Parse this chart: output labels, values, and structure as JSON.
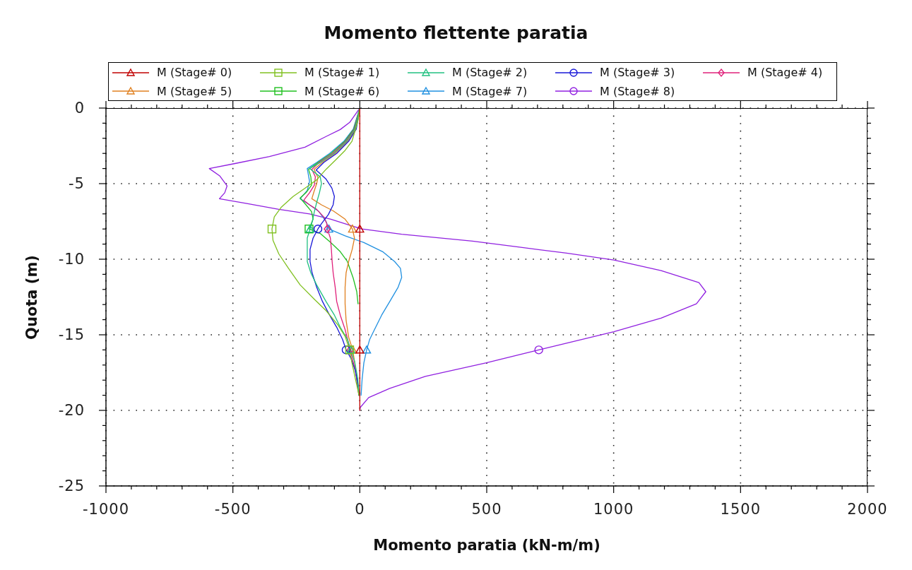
{
  "chart_data": {
    "type": "line",
    "title": "Momento flettente paratia",
    "xlabel": "Momento paratia (kN-m/m)",
    "ylabel": "Quota (m)",
    "xlim": [
      -1000,
      2000
    ],
    "ylim": [
      -25,
      0
    ],
    "xticks": [
      -1000,
      {
        "value": -900,
        "label": null
      },
      {
        "value": -800,
        "label": null
      },
      {
        "value": -700,
        "label": null
      },
      {
        "value": -600,
        "label": null
      },
      -500,
      {
        "value": -400,
        "label": null
      },
      {
        "value": -300,
        "label": null
      },
      {
        "value": -200,
        "label": null
      },
      {
        "value": -100,
        "label": null
      },
      0,
      {
        "value": 100,
        "label": null
      },
      {
        "value": 200,
        "label": null
      },
      {
        "value": 300,
        "label": null
      },
      {
        "value": 400,
        "label": null
      },
      500,
      {
        "value": 600,
        "label": null
      },
      {
        "value": 700,
        "label": null
      },
      {
        "value": 800,
        "label": null
      },
      {
        "value": 900,
        "label": null
      },
      1000,
      {
        "value": 1100,
        "label": null
      },
      {
        "value": 1200,
        "label": null
      },
      {
        "value": 1300,
        "label": null
      },
      {
        "value": 1400,
        "label": null
      },
      1500,
      {
        "value": 1600,
        "label": null
      },
      {
        "value": 1700,
        "label": null
      },
      {
        "value": 1800,
        "label": null
      },
      {
        "value": 1900,
        "label": null
      },
      2000
    ],
    "yticks": [
      -25,
      {
        "value": -24,
        "label": null
      },
      {
        "value": -23,
        "label": null
      },
      {
        "value": -22,
        "label": null
      },
      {
        "value": -21,
        "label": null
      },
      -20,
      {
        "value": -19,
        "label": null
      },
      {
        "value": -18,
        "label": null
      },
      {
        "value": -17,
        "label": null
      },
      {
        "value": -16,
        "label": null
      },
      -15,
      {
        "value": -14,
        "label": null
      },
      {
        "value": -13,
        "label": null
      },
      {
        "value": -12,
        "label": null
      },
      {
        "value": -11,
        "label": null
      },
      -10,
      {
        "value": -9,
        "label": null
      },
      {
        "value": -8,
        "label": null
      },
      {
        "value": -7,
        "label": null
      },
      {
        "value": -6,
        "label": null
      },
      -5,
      {
        "value": -4,
        "label": null
      },
      {
        "value": -3,
        "label": null
      },
      {
        "value": -2,
        "label": null
      },
      {
        "value": -1,
        "label": null
      },
      0
    ],
    "grid": true,
    "legend": "top",
    "series": [
      {
        "name": "M (Stage# 0)",
        "color": "#c00000",
        "x": [
          0,
          0
        ],
        "values": [
          0,
          -20
        ]
      },
      {
        "name": "M (Stage# 1)",
        "color": "#80c020",
        "x": [
          0,
          -7,
          -17,
          -31,
          -58,
          -96,
          -133,
          -170,
          -216,
          -263,
          -309,
          -337,
          -346,
          -342,
          -319,
          -281,
          -235,
          -179,
          -133,
          -86,
          -58,
          -40,
          -31,
          -17,
          -7,
          -3
        ],
        "values": [
          0,
          -0.8,
          -1.4,
          -2.2,
          -2.8,
          -3.45,
          -4.05,
          -4.75,
          -5.3,
          -5.85,
          -6.55,
          -7.2,
          -8,
          -8.75,
          -9.65,
          -10.6,
          -11.7,
          -12.65,
          -13.4,
          -14.35,
          -15.1,
          -16,
          -16.85,
          -17.95,
          -18.7,
          -19
        ]
      },
      {
        "name": "M (Stage# 2)",
        "color": "#20c080",
        "x": [
          0,
          -20,
          -52,
          -102,
          -155,
          -198,
          -156,
          -151,
          -159,
          -170,
          -179,
          -187,
          -196,
          -207,
          -207,
          -193,
          -170,
          -133,
          -100,
          -77,
          -49,
          -35,
          -20,
          -8,
          -3
        ],
        "values": [
          0,
          -1.4,
          -2.2,
          -3,
          -3.6,
          -4,
          -4.55,
          -5,
          -5.6,
          -6.25,
          -6.85,
          -7.5,
          -8,
          -8.6,
          -10.15,
          -10.9,
          -11.7,
          -12.8,
          -13.7,
          -14.5,
          -15.3,
          -16,
          -16.8,
          -17.9,
          -19
        ]
      },
      {
        "name": "M (Stage# 3)",
        "color": "#1818d8",
        "x": [
          0,
          -14,
          -44,
          -91,
          -142,
          -172,
          -133,
          -110,
          -100,
          -105,
          -124,
          -151,
          -165,
          -184,
          -196,
          -196,
          -188,
          -170,
          -147,
          -119,
          -91,
          -68,
          -54,
          -35,
          -17,
          -7,
          -4
        ],
        "values": [
          0,
          -1.4,
          -2.2,
          -3,
          -3.6,
          -4.1,
          -4.7,
          -5.3,
          -5.85,
          -6.4,
          -7.05,
          -7.65,
          -8,
          -8.6,
          -9.35,
          -10.15,
          -10.9,
          -11.85,
          -12.8,
          -13.7,
          -14.5,
          -15.3,
          -16,
          -16.55,
          -17.4,
          -18.4,
          -19
        ]
      },
      {
        "name": "M (Stage# 4)",
        "color": "#e0207a",
        "x": [
          0,
          -22,
          -55,
          -107,
          -160,
          -189,
          -175,
          -179,
          -198,
          -221,
          -198,
          -170,
          -142,
          -130,
          -128,
          -116,
          -112,
          -109,
          -105,
          -97,
          -91,
          -77,
          -58,
          -38,
          -20,
          -7,
          -2
        ],
        "values": [
          0,
          -1.4,
          -2.2,
          -3,
          -3.6,
          -4.05,
          -4.55,
          -5.1,
          -5.6,
          -6.1,
          -6.4,
          -6.7,
          -7.2,
          -7.65,
          -8,
          -8.6,
          -9.35,
          -10.15,
          -10.9,
          -11.85,
          -12.8,
          -13.7,
          -14.65,
          -16,
          -17.2,
          -18.3,
          -19
        ]
      },
      {
        "name": "M (Stage# 5)",
        "color": "#e08020",
        "x": [
          0,
          -17,
          -48,
          -97,
          -148,
          -180,
          -165,
          -170,
          -180,
          -189,
          -151,
          -105,
          -58,
          -29,
          -21,
          -30,
          -44,
          -54,
          -58,
          -58,
          -54,
          -44,
          -28,
          -20,
          -12,
          -4
        ],
        "values": [
          0,
          -1.4,
          -2.2,
          -3,
          -3.6,
          -4.05,
          -4.6,
          -5,
          -5.5,
          -6,
          -6.4,
          -6.8,
          -7.35,
          -8,
          -8.6,
          -9.35,
          -10.15,
          -10.9,
          -11.85,
          -12.95,
          -14.05,
          -15.15,
          -16,
          -16.85,
          -17.95,
          -19
        ]
      },
      {
        "name": "M (Stage# 6)",
        "color": "#20c020",
        "x": [
          0,
          -24,
          -59,
          -113,
          -165,
          -202,
          -193,
          -190,
          -212,
          -235,
          -212,
          -190,
          -184,
          -200,
          -156,
          -114,
          -77,
          -49,
          -26,
          -12,
          -7
        ],
        "values": [
          0,
          -1.4,
          -2.2,
          -3,
          -3.6,
          -4.05,
          -4.55,
          -5.1,
          -5.6,
          -5.95,
          -6.4,
          -6.85,
          -7.35,
          -8,
          -8.3,
          -8.9,
          -9.5,
          -10.15,
          -11.25,
          -12.15,
          -12.95
        ]
      },
      {
        "name": "M (Stage# 7)",
        "color": "#2090e0",
        "x": [
          0,
          -26,
          -63,
          -119,
          -170,
          -207,
          -198,
          -207,
          -235,
          -198,
          -161,
          -133,
          -122,
          -58,
          16,
          90,
          137,
          160,
          165,
          151,
          118,
          86,
          58,
          39,
          27,
          16,
          9,
          5
        ],
        "values": [
          0,
          -1.4,
          -2.2,
          -3,
          -3.6,
          -4,
          -4.85,
          -5.45,
          -6,
          -6.4,
          -6.85,
          -7.5,
          -8,
          -8.45,
          -8.9,
          -9.5,
          -10.15,
          -10.6,
          -11.2,
          -11.85,
          -12.8,
          -13.7,
          -14.65,
          -15.3,
          -16,
          -16.85,
          -17.95,
          -19
        ]
      },
      {
        "name": "M (Stage# 8)",
        "color": "#9020e0",
        "x": [
          0,
          -40,
          -77,
          -133,
          -216,
          -356,
          -495,
          -593,
          -551,
          -523,
          -532,
          -553,
          -449,
          -319,
          -198,
          -114,
          -31,
          8,
          165,
          444,
          629,
          815,
          1001,
          1187,
          1336,
          1363,
          1326,
          1187,
          1001,
          705,
          499,
          258,
          118,
          35,
          2,
          0
        ],
        "values": [
          0,
          -0.95,
          -1.42,
          -1.88,
          -2.59,
          -3.21,
          -3.68,
          -4,
          -4.5,
          -5.15,
          -5.6,
          -6,
          -6.3,
          -6.7,
          -7,
          -7.35,
          -7.8,
          -8,
          -8.35,
          -8.8,
          -9.2,
          -9.6,
          -10.05,
          -10.75,
          -11.55,
          -12.15,
          -12.95,
          -13.9,
          -14.8,
          -16,
          -16.85,
          -17.75,
          -18.55,
          -19.15,
          -19.8,
          -20
        ]
      },
      {
        "type": "scatter",
        "color": "#c00000",
        "marker": "triangle",
        "x": [
          0,
          0
        ],
        "values": [
          -8,
          -16
        ]
      },
      {
        "type": "scatter",
        "color": "#80c020",
        "marker": "square",
        "x": [
          -346,
          -40
        ],
        "values": [
          -8,
          -16
        ]
      },
      {
        "type": "scatter",
        "color": "#20c080",
        "marker": "triangle",
        "x": [
          -196,
          -35
        ],
        "values": [
          -8,
          -16
        ]
      },
      {
        "type": "scatter",
        "color": "#1818d8",
        "marker": "circle",
        "x": [
          -165,
          -54
        ],
        "values": [
          -8,
          -16
        ]
      },
      {
        "type": "scatter",
        "color": "#e0207a",
        "marker": "diamond",
        "x": [
          -128,
          -38
        ],
        "values": [
          -8,
          -16
        ]
      },
      {
        "type": "scatter",
        "color": "#e08020",
        "marker": "triangle",
        "x": [
          -29,
          -28
        ],
        "values": [
          -8,
          -16
        ]
      },
      {
        "type": "scatter",
        "color": "#20c020",
        "marker": "square",
        "x": [
          -200
        ],
        "values": [
          -8
        ]
      },
      {
        "type": "scatter",
        "color": "#2090e0",
        "marker": "triangle",
        "x": [
          -122,
          27
        ],
        "values": [
          -8,
          -16
        ]
      },
      {
        "type": "scatter",
        "color": "#9020e0",
        "marker": "circle",
        "x": [
          705
        ],
        "values": [
          -16
        ]
      }
    ]
  }
}
